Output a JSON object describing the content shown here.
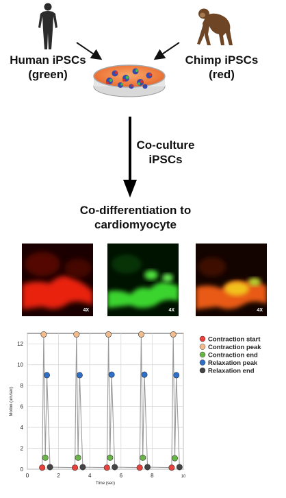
{
  "top": {
    "human_label_line1": "Human iPSCs",
    "human_label_line2": "(green)",
    "chimp_label_line1": "Chimp iPSCs",
    "chimp_label_line2": "(red)",
    "coculture_line1": "Co-culture",
    "coculture_line2": "iPSCs",
    "codiff_line1": "Co-differentiation to",
    "codiff_line2": "cardiomyocyte"
  },
  "panels": [
    {
      "channel": "red",
      "magnification": "4X"
    },
    {
      "channel": "green",
      "magnification": "4X"
    },
    {
      "channel": "merge",
      "magnification": "4X"
    }
  ],
  "chart_data": {
    "type": "scatter",
    "xlabel": "Time (sec)",
    "ylabel": "Motion (um/sec)",
    "xlim": [
      0,
      10
    ],
    "ylim": [
      0,
      13
    ],
    "xticks": [
      "0",
      "2",
      "4",
      "6",
      "8",
      "10"
    ],
    "yticks": [
      "0",
      "2",
      "4",
      "6",
      "8",
      "10",
      "12"
    ],
    "grid": true,
    "legend_position": "top-right",
    "series": [
      {
        "name": "Contraction start",
        "color": "#e8403a",
        "x": [
          0.95,
          3.05,
          5.1,
          7.2,
          9.25
        ],
        "y": [
          0.15,
          0.15,
          0.15,
          0.15,
          0.15
        ]
      },
      {
        "name": "Contraction peak",
        "color": "#f2bc8c",
        "x": [
          1.05,
          3.15,
          5.2,
          7.3,
          9.35
        ],
        "y": [
          12.9,
          12.9,
          12.9,
          12.9,
          12.9
        ]
      },
      {
        "name": "Contraction end",
        "color": "#6ab547",
        "x": [
          1.15,
          3.25,
          5.3,
          7.4,
          9.45
        ],
        "y": [
          1.1,
          1.1,
          1.1,
          1.1,
          1.05
        ]
      },
      {
        "name": "Relaxation peak",
        "color": "#2f6fc6",
        "x": [
          1.25,
          3.35,
          5.4,
          7.5,
          9.55
        ],
        "y": [
          9.0,
          9.0,
          9.05,
          9.05,
          9.0
        ]
      },
      {
        "name": "Relaxation end",
        "color": "#444444",
        "x": [
          1.45,
          3.55,
          5.6,
          7.7,
          9.75
        ],
        "y": [
          0.2,
          0.2,
          0.2,
          0.2,
          0.2
        ]
      }
    ]
  }
}
